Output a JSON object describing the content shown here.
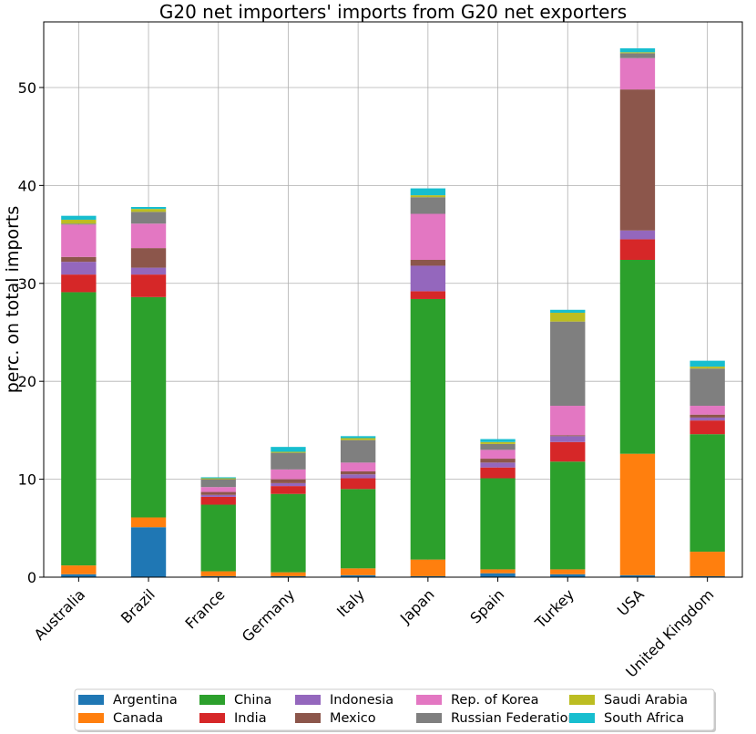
{
  "chart_data": {
    "type": "bar",
    "stacked": true,
    "title": "G20 net importers' imports from G20 net exporters",
    "xlabel": "",
    "ylabel": "perc. on total imports",
    "ylim": [
      0,
      56.7
    ],
    "yticks": [
      0,
      10,
      20,
      30,
      40,
      50
    ],
    "grid": true,
    "legend_position": "bottom-center",
    "categories": [
      "Australia",
      "Brazil",
      "France",
      "Germany",
      "Italy",
      "Japan",
      "Spain",
      "Turkey",
      "USA",
      "United Kingdom"
    ],
    "series": [
      {
        "name": "Argentina",
        "color": "#1f77b4",
        "values": [
          0.3,
          5.1,
          0.1,
          0.1,
          0.2,
          0.1,
          0.4,
          0.3,
          0.2,
          0.1
        ]
      },
      {
        "name": "Canada",
        "color": "#ff7f0e",
        "values": [
          0.9,
          1.0,
          0.5,
          0.4,
          0.7,
          1.7,
          0.4,
          0.5,
          12.4,
          2.5
        ]
      },
      {
        "name": "China",
        "color": "#2ca02c",
        "values": [
          27.9,
          22.5,
          6.8,
          8.0,
          8.1,
          26.6,
          9.3,
          11.0,
          19.8,
          12.0
        ]
      },
      {
        "name": "India",
        "color": "#d62728",
        "values": [
          1.8,
          2.3,
          0.8,
          0.8,
          1.1,
          0.8,
          1.1,
          2.0,
          2.1,
          1.4
        ]
      },
      {
        "name": "Indonesia",
        "color": "#9467bd",
        "values": [
          1.3,
          0.7,
          0.2,
          0.3,
          0.4,
          2.6,
          0.5,
          0.6,
          0.9,
          0.3
        ]
      },
      {
        "name": "Mexico",
        "color": "#8c564b",
        "values": [
          0.5,
          2.0,
          0.3,
          0.4,
          0.3,
          0.6,
          0.4,
          0.1,
          14.4,
          0.3
        ]
      },
      {
        "name": "Rep. of Korea",
        "color": "#e377c2",
        "values": [
          3.3,
          2.5,
          0.5,
          1.0,
          0.9,
          4.7,
          0.9,
          3.0,
          3.2,
          0.9
        ]
      },
      {
        "name": "Russian Federation",
        "color": "#7f7f7f",
        "values": [
          0.1,
          1.2,
          0.8,
          1.7,
          2.3,
          1.7,
          0.6,
          8.6,
          0.5,
          3.8
        ]
      },
      {
        "name": "Saudi Arabia",
        "color": "#bcbd22",
        "values": [
          0.4,
          0.3,
          0.1,
          0.1,
          0.2,
          0.2,
          0.2,
          0.9,
          0.1,
          0.2
        ]
      },
      {
        "name": "South Africa",
        "color": "#17becf",
        "values": [
          0.4,
          0.2,
          0.1,
          0.5,
          0.2,
          0.7,
          0.3,
          0.3,
          0.4,
          0.6
        ]
      }
    ]
  }
}
